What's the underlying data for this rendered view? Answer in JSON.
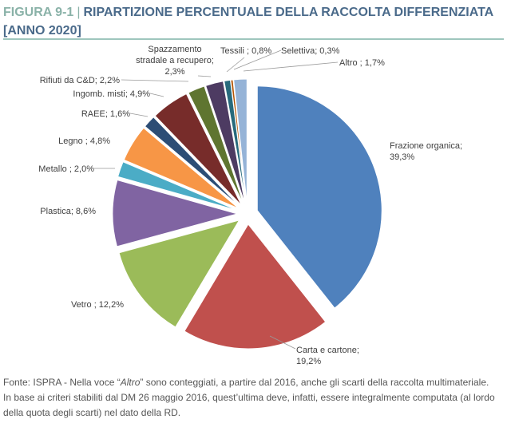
{
  "header": {
    "figure_label": "FIGURA 9-1",
    "separator": "|",
    "title_line1": "RIPARTIZIONE PERCENTUALE DELLA RACCOLTA DIFFERENZIATA",
    "title_line2": "[ANNO 2020]"
  },
  "chart_data": {
    "type": "pie",
    "title": "RIPARTIZIONE PERCENTUALE DELLA RACCOLTA DIFFERENZIATA [ANNO 2020]",
    "unit": "%",
    "slices": [
      {
        "label_lines": [
          "Frazione organica;",
          "39,3%"
        ],
        "value": 39.3,
        "color": "#4f81bd"
      },
      {
        "label_lines": [
          "Carta e cartone;",
          "19,2%"
        ],
        "value": 19.2,
        "color": "#c0504d"
      },
      {
        "label_lines": [
          "Vetro ; 12,2%"
        ],
        "value": 12.2,
        "color": "#9bbb59"
      },
      {
        "label_lines": [
          "Plastica; 8,6%"
        ],
        "value": 8.6,
        "color": "#8064a2"
      },
      {
        "label_lines": [
          "Metallo ; 2,0%"
        ],
        "value": 2.0,
        "color": "#4bacc6"
      },
      {
        "label_lines": [
          "Legno ; 4,8%"
        ],
        "value": 4.8,
        "color": "#f79646"
      },
      {
        "label_lines": [
          "RAEE; 1,6%"
        ],
        "value": 1.6,
        "color": "#2c4d75"
      },
      {
        "label_lines": [
          "Ingomb. misti; 4,9%"
        ],
        "value": 4.9,
        "color": "#772c2a"
      },
      {
        "label_lines": [
          "Rifiuti da C&D; 2,2%"
        ],
        "value": 2.2,
        "color": "#5f7530"
      },
      {
        "label_lines": [
          "Spazzamento",
          "stradale a recupero;",
          "2,3%"
        ],
        "value": 2.3,
        "color": "#4d3b62"
      },
      {
        "label_lines": [
          "Tessili ; 0,8%"
        ],
        "value": 0.8,
        "color": "#276a7c"
      },
      {
        "label_lines": [
          "Selettiva; 0,3%"
        ],
        "value": 0.3,
        "color": "#b65708"
      },
      {
        "label_lines": [
          "Altro ; 1,7%"
        ],
        "value": 1.7,
        "color": "#95b3d7"
      }
    ]
  },
  "footer": {
    "source_prefix": "Fonte: ISPRA - Nella voce “",
    "source_italic": "Altro",
    "source_suffix": "” sono conteggiati, a partire dal 2016, anche gli scarti della raccolta multimateriale.",
    "rest": "In base ai criteri stabiliti dal DM 26 maggio 2016, quest’ultima deve, infatti, essere integralmente computata (al lordo della quota degli scarti) nel dato della RD."
  }
}
